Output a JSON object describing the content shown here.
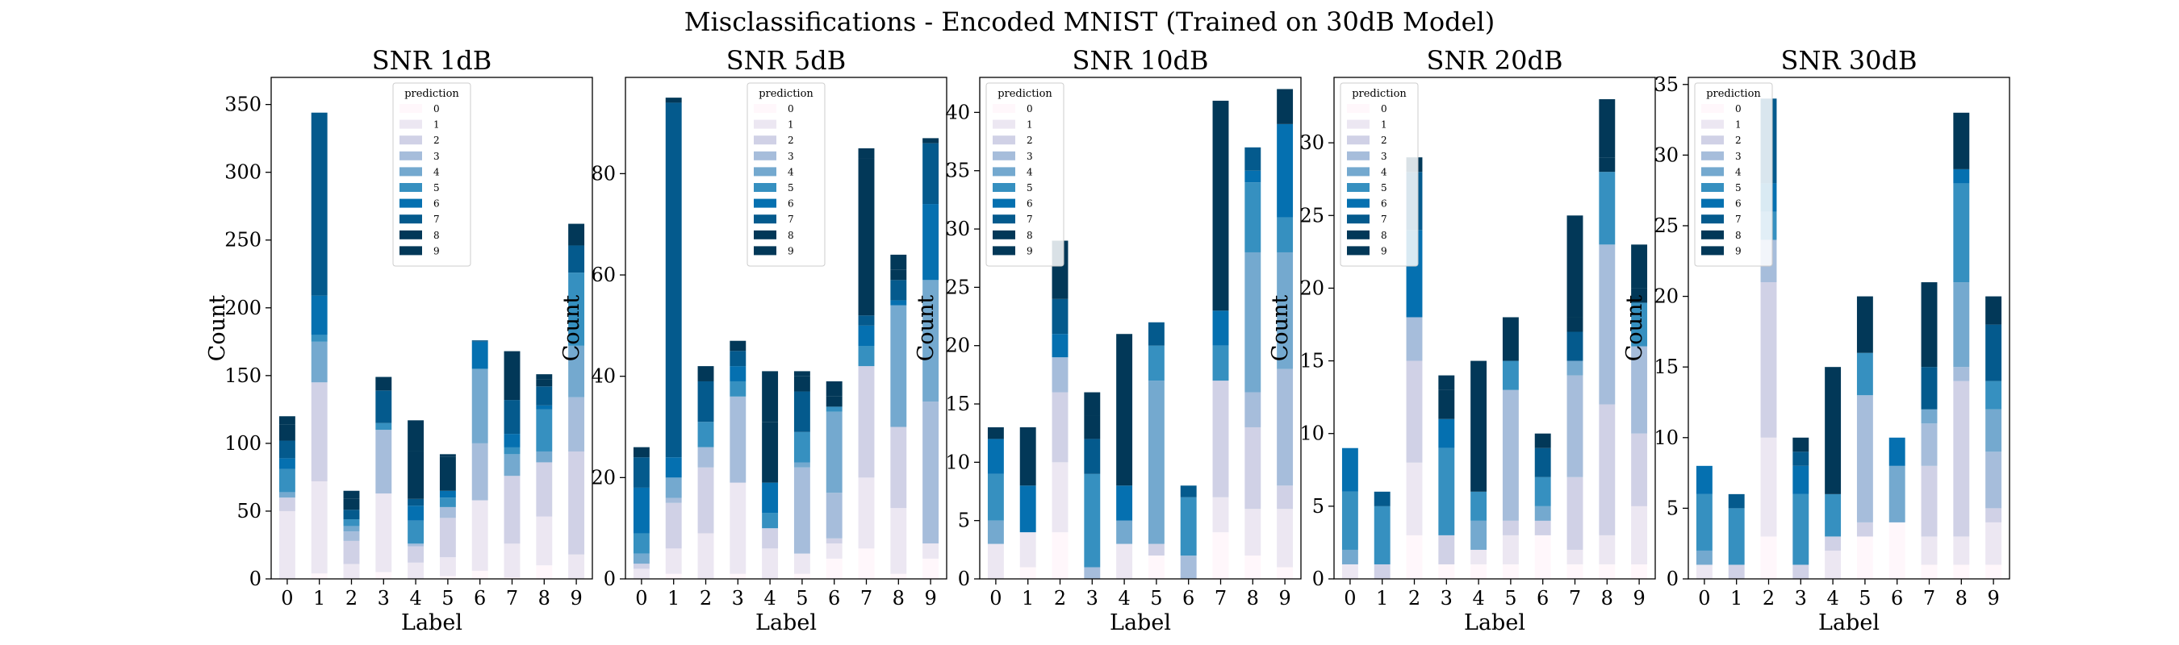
{
  "figure_title": "Misclassifications - Encoded MNIST (Trained on 30dB Model)",
  "colors": [
    "#fff7fb",
    "#ece7f2",
    "#d0d1e6",
    "#a6bddb",
    "#74a9cf",
    "#3690c0",
    "#0570b0",
    "#045a8d",
    "#023858",
    "#023858"
  ],
  "chart_data": [
    {
      "type": "bar",
      "stacked": true,
      "title": "SNR 1dB",
      "xlabel": "Label",
      "ylabel": "Count",
      "legend_title": "prediction",
      "legend_position": "top-center",
      "categories": [
        "0",
        "1",
        "2",
        "3",
        "4",
        "5",
        "6",
        "7",
        "8",
        "9"
      ],
      "ylim": [
        0,
        370
      ],
      "yticks": [
        "0",
        "50",
        "100",
        "150",
        "200",
        "250",
        "300",
        "350"
      ],
      "series": [
        {
          "name": "0",
          "values": [
            0,
            4,
            0,
            5,
            0,
            2,
            6,
            1,
            10,
            0
          ]
        },
        {
          "name": "1",
          "values": [
            50,
            68,
            11,
            58,
            12,
            14,
            52,
            25,
            36,
            18
          ]
        },
        {
          "name": "2",
          "values": [
            10,
            73,
            17,
            0,
            12,
            29,
            0,
            50,
            40,
            76
          ]
        },
        {
          "name": "3",
          "values": [
            0,
            0,
            7,
            47,
            2,
            8,
            42,
            0,
            0,
            40
          ]
        },
        {
          "name": "4",
          "values": [
            4,
            30,
            4,
            0,
            0,
            0,
            55,
            16,
            8,
            38
          ]
        },
        {
          "name": "5",
          "values": [
            17,
            5,
            5,
            5,
            17,
            7,
            0,
            5,
            31,
            54
          ]
        },
        {
          "name": "6",
          "values": [
            8,
            29,
            0,
            0,
            11,
            5,
            20,
            10,
            3,
            0
          ]
        },
        {
          "name": "7",
          "values": [
            13,
            135,
            7,
            24,
            5,
            0,
            1,
            25,
            14,
            20
          ]
        },
        {
          "name": "8",
          "values": [
            12,
            0,
            8,
            0,
            35,
            25,
            0,
            36,
            5,
            16
          ]
        },
        {
          "name": "9",
          "values": [
            6,
            0,
            6,
            10,
            23,
            2,
            0,
            0,
            4,
            0
          ]
        }
      ]
    },
    {
      "type": "bar",
      "stacked": true,
      "title": "SNR 5dB",
      "xlabel": "Label",
      "ylabel": "Count",
      "legend_title": "prediction",
      "legend_position": "top-center",
      "categories": [
        "0",
        "1",
        "2",
        "3",
        "4",
        "5",
        "6",
        "7",
        "8",
        "9"
      ],
      "ylim": [
        0,
        99
      ],
      "yticks": [
        "0",
        "20",
        "40",
        "60",
        "80"
      ],
      "series": [
        {
          "name": "0",
          "values": [
            0,
            1,
            0,
            1,
            0,
            1,
            4,
            6,
            1,
            4
          ]
        },
        {
          "name": "1",
          "values": [
            2,
            5,
            9,
            18,
            6,
            4,
            3,
            14,
            13,
            3
          ]
        },
        {
          "name": "2",
          "values": [
            1,
            9,
            13,
            0,
            4,
            0,
            1,
            22,
            16,
            0
          ]
        },
        {
          "name": "3",
          "values": [
            0,
            1,
            4,
            17,
            0,
            17,
            9,
            0,
            0,
            28
          ]
        },
        {
          "name": "4",
          "values": [
            2,
            4,
            0,
            0,
            0,
            1,
            16,
            0,
            24,
            24
          ]
        },
        {
          "name": "5",
          "values": [
            4,
            0,
            5,
            3,
            3,
            6,
            1,
            4,
            0,
            0
          ]
        },
        {
          "name": "6",
          "values": [
            9,
            4,
            0,
            3,
            6,
            0,
            0,
            4,
            1,
            15
          ]
        },
        {
          "name": "7",
          "values": [
            6,
            70,
            8,
            3,
            0,
            8,
            0,
            2,
            4,
            12
          ]
        },
        {
          "name": "8",
          "values": [
            2,
            1,
            3,
            0,
            12,
            3,
            2,
            31,
            2,
            0
          ]
        },
        {
          "name": "9",
          "values": [
            0,
            0,
            0,
            2,
            10,
            1,
            3,
            2,
            3,
            1
          ]
        }
      ]
    },
    {
      "type": "bar",
      "stacked": true,
      "title": "SNR 10dB",
      "xlabel": "Label",
      "ylabel": "Count",
      "legend_title": "prediction",
      "legend_position": "top-left",
      "categories": [
        "0",
        "1",
        "2",
        "3",
        "4",
        "5",
        "6",
        "7",
        "8",
        "9"
      ],
      "ylim": [
        0,
        43
      ],
      "yticks": [
        "0",
        "5",
        "10",
        "15",
        "20",
        "25",
        "30",
        "35",
        "40"
      ],
      "series": [
        {
          "name": "0",
          "values": [
            0,
            1,
            4,
            0,
            0,
            2,
            0,
            4,
            2,
            1
          ]
        },
        {
          "name": "1",
          "values": [
            3,
            3,
            6,
            0,
            3,
            0,
            0,
            3,
            4,
            5
          ]
        },
        {
          "name": "2",
          "values": [
            0,
            0,
            6,
            0,
            0,
            1,
            0,
            10,
            7,
            2
          ]
        },
        {
          "name": "3",
          "values": [
            0,
            0,
            3,
            1,
            0,
            0,
            2,
            0,
            3,
            10
          ]
        },
        {
          "name": "4",
          "values": [
            2,
            0,
            0,
            0,
            2,
            14,
            0,
            0,
            12,
            10
          ]
        },
        {
          "name": "5",
          "values": [
            4,
            0,
            0,
            8,
            0,
            3,
            5,
            3,
            6,
            3
          ]
        },
        {
          "name": "6",
          "values": [
            3,
            4,
            2,
            0,
            3,
            0,
            0,
            3,
            1,
            8
          ]
        },
        {
          "name": "7",
          "values": [
            0,
            0,
            3,
            3,
            0,
            2,
            1,
            0,
            2,
            0
          ]
        },
        {
          "name": "8",
          "values": [
            0,
            5,
            0,
            2,
            0,
            0,
            0,
            0,
            0,
            0
          ]
        },
        {
          "name": "9",
          "values": [
            1,
            0,
            5,
            2,
            13,
            0,
            0,
            18,
            0,
            3
          ]
        }
      ]
    },
    {
      "type": "bar",
      "stacked": true,
      "title": "SNR 20dB",
      "xlabel": "Label",
      "ylabel": "Count",
      "legend_title": "prediction",
      "legend_position": "top-left",
      "categories": [
        "0",
        "1",
        "2",
        "3",
        "4",
        "5",
        "6",
        "7",
        "8",
        "9"
      ],
      "ylim": [
        0,
        34.5
      ],
      "yticks": [
        "0",
        "5",
        "10",
        "15",
        "20",
        "25",
        "30"
      ],
      "series": [
        {
          "name": "0",
          "values": [
            0,
            0,
            3,
            1,
            1,
            1,
            3,
            1,
            1,
            1
          ]
        },
        {
          "name": "1",
          "values": [
            1,
            0,
            5,
            0,
            1,
            2,
            0,
            1,
            2,
            4
          ]
        },
        {
          "name": "2",
          "values": [
            0,
            1,
            7,
            2,
            0,
            1,
            1,
            5,
            9,
            5
          ]
        },
        {
          "name": "3",
          "values": [
            0,
            0,
            3,
            0,
            0,
            9,
            0,
            7,
            11,
            6
          ]
        },
        {
          "name": "4",
          "values": [
            1,
            0,
            0,
            0,
            2,
            0,
            1,
            1,
            0,
            0
          ]
        },
        {
          "name": "5",
          "values": [
            4,
            4,
            0,
            6,
            2,
            2,
            2,
            0,
            5,
            3
          ]
        },
        {
          "name": "6",
          "values": [
            3,
            0,
            6,
            2,
            0,
            0,
            0,
            0,
            0,
            0
          ]
        },
        {
          "name": "7",
          "values": [
            0,
            1,
            4,
            0,
            0,
            0,
            2,
            2,
            0,
            0
          ]
        },
        {
          "name": "8",
          "values": [
            0,
            0,
            1,
            2,
            0,
            0,
            0,
            1,
            1,
            1
          ]
        },
        {
          "name": "9",
          "values": [
            0,
            0,
            0,
            1,
            9,
            3,
            1,
            7,
            4,
            3
          ]
        }
      ]
    },
    {
      "type": "bar",
      "stacked": true,
      "title": "SNR 30dB",
      "xlabel": "Label",
      "ylabel": "Count",
      "legend_title": "prediction",
      "legend_position": "top-left",
      "categories": [
        "0",
        "1",
        "2",
        "3",
        "4",
        "5",
        "6",
        "7",
        "8",
        "9"
      ],
      "ylim": [
        0,
        35.5
      ],
      "yticks": [
        "0",
        "5",
        "10",
        "15",
        "20",
        "25",
        "30",
        "35"
      ],
      "series": [
        {
          "name": "0",
          "values": [
            0,
            0,
            3,
            0,
            0,
            3,
            4,
            1,
            1,
            1
          ]
        },
        {
          "name": "1",
          "values": [
            1,
            0,
            7,
            0,
            2,
            0,
            0,
            2,
            2,
            3
          ]
        },
        {
          "name": "2",
          "values": [
            0,
            1,
            11,
            1,
            1,
            1,
            0,
            5,
            11,
            1
          ]
        },
        {
          "name": "3",
          "values": [
            0,
            0,
            3,
            0,
            0,
            9,
            0,
            3,
            1,
            4
          ]
        },
        {
          "name": "4",
          "values": [
            1,
            0,
            0,
            0,
            0,
            0,
            4,
            1,
            6,
            3
          ]
        },
        {
          "name": "5",
          "values": [
            4,
            4,
            2,
            5,
            3,
            3,
            0,
            0,
            7,
            2
          ]
        },
        {
          "name": "6",
          "values": [
            2,
            0,
            2,
            2,
            0,
            0,
            2,
            0,
            1,
            0
          ]
        },
        {
          "name": "7",
          "values": [
            0,
            1,
            6,
            1,
            0,
            0,
            0,
            3,
            0,
            4
          ]
        },
        {
          "name": "8",
          "values": [
            0,
            0,
            0,
            0,
            0,
            0,
            0,
            0,
            0,
            0
          ]
        },
        {
          "name": "9",
          "values": [
            0,
            0,
            0,
            1,
            9,
            4,
            0,
            6,
            4,
            2
          ]
        }
      ]
    }
  ]
}
